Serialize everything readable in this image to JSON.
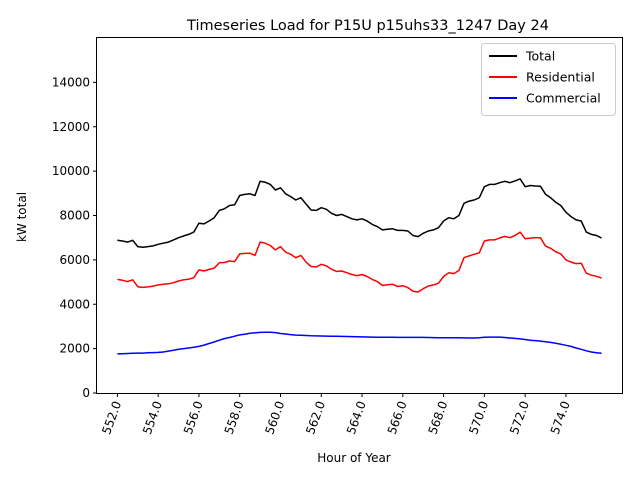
{
  "chart_data": {
    "type": "line",
    "title": "Timeseries Load for P15U p15uhs33_1247  Day 24",
    "xlabel": "Hour of Year",
    "ylabel": "kW total",
    "xlim": [
      551.0,
      576.75
    ],
    "ylim": [
      0,
      16000
    ],
    "xticks": [
      552,
      554,
      556,
      558,
      560,
      562,
      564,
      566,
      568,
      570,
      572,
      574
    ],
    "xtick_labels": [
      "552.0",
      "554.0",
      "556.0",
      "558.0",
      "560.0",
      "562.0",
      "564.0",
      "566.0",
      "568.0",
      "570.0",
      "572.0",
      "574.0"
    ],
    "yticks": [
      0,
      2000,
      4000,
      6000,
      8000,
      10000,
      12000,
      14000
    ],
    "ytick_labels": [
      "0",
      "2000",
      "4000",
      "6000",
      "8000",
      "10000",
      "12000",
      "14000"
    ],
    "grid": false,
    "legend_position": "top-right",
    "x_start": 552.0,
    "x_step": 0.25,
    "series": [
      {
        "name": "Total",
        "color": "#000000",
        "values": [
          6880,
          6850,
          6800,
          6880,
          6600,
          6570,
          6600,
          6630,
          6700,
          6750,
          6800,
          6900,
          7000,
          7080,
          7150,
          7250,
          7650,
          7620,
          7750,
          7900,
          8230,
          8300,
          8450,
          8480,
          8900,
          8950,
          8980,
          8900,
          9540,
          9500,
          9400,
          9150,
          9250,
          8980,
          8850,
          8700,
          8800,
          8520,
          8250,
          8230,
          8350,
          8280,
          8100,
          8000,
          8050,
          7950,
          7850,
          7800,
          7850,
          7750,
          7600,
          7500,
          7350,
          7380,
          7400,
          7330,
          7330,
          7300,
          7100,
          7050,
          7200,
          7300,
          7350,
          7450,
          7750,
          7900,
          7850,
          8000,
          8550,
          8650,
          8700,
          8800,
          9300,
          9400,
          9400,
          9480,
          9540,
          9480,
          9560,
          9650,
          9300,
          9350,
          9330,
          9320,
          8960,
          8800,
          8600,
          8450,
          8150,
          7950,
          7800,
          7750,
          7250,
          7150,
          7100,
          6980
        ]
      },
      {
        "name": "Residential",
        "color": "#ff0000",
        "values": [
          5120,
          5080,
          5020,
          5100,
          4790,
          4760,
          4780,
          4820,
          4870,
          4900,
          4920,
          4970,
          5050,
          5100,
          5130,
          5200,
          5550,
          5500,
          5570,
          5630,
          5870,
          5880,
          5950,
          5920,
          6270,
          6290,
          6300,
          6200,
          6800,
          6750,
          6650,
          6450,
          6600,
          6350,
          6250,
          6100,
          6200,
          5900,
          5700,
          5680,
          5800,
          5730,
          5580,
          5480,
          5500,
          5420,
          5340,
          5290,
          5340,
          5250,
          5120,
          5020,
          4850,
          4880,
          4900,
          4800,
          4830,
          4750,
          4590,
          4550,
          4700,
          4820,
          4870,
          4950,
          5250,
          5420,
          5380,
          5520,
          6100,
          6180,
          6250,
          6320,
          6850,
          6900,
          6900,
          6990,
          7060,
          7000,
          7100,
          7250,
          6950,
          6980,
          7000,
          7000,
          6620,
          6520,
          6370,
          6270,
          6000,
          5900,
          5830,
          5850,
          5400,
          5310,
          5260,
          5180
        ]
      },
      {
        "name": "Commercial",
        "color": "#0000ff",
        "values": [
          1760,
          1770,
          1780,
          1790,
          1800,
          1800,
          1810,
          1820,
          1830,
          1850,
          1890,
          1930,
          1970,
          2000,
          2030,
          2060,
          2100,
          2160,
          2230,
          2300,
          2380,
          2450,
          2500,
          2560,
          2620,
          2650,
          2690,
          2710,
          2730,
          2740,
          2740,
          2720,
          2680,
          2660,
          2630,
          2610,
          2600,
          2590,
          2580,
          2575,
          2570,
          2565,
          2560,
          2555,
          2550,
          2545,
          2540,
          2535,
          2530,
          2525,
          2520,
          2515,
          2510,
          2510,
          2510,
          2505,
          2505,
          2505,
          2505,
          2505,
          2505,
          2500,
          2495,
          2490,
          2490,
          2490,
          2490,
          2490,
          2485,
          2480,
          2480,
          2490,
          2510,
          2520,
          2520,
          2520,
          2500,
          2480,
          2460,
          2440,
          2410,
          2380,
          2360,
          2340,
          2310,
          2280,
          2240,
          2200,
          2150,
          2100,
          2030,
          1970,
          1900,
          1850,
          1810,
          1790
        ]
      }
    ]
  }
}
